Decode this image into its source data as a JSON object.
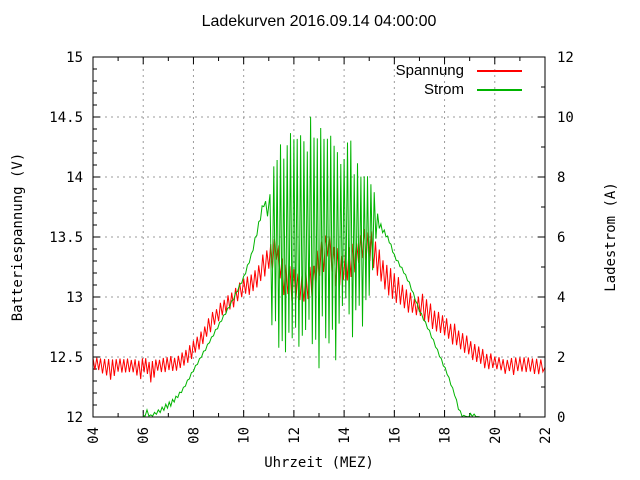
{
  "title": "Ladekurven 2016.09.14 04:00:00",
  "legend": {
    "position": "top-right-inside",
    "items": [
      {
        "label": "Spannung",
        "color": "#ff0000"
      },
      {
        "label": "Strom",
        "color": "#00b400"
      }
    ]
  },
  "style": {
    "background": "#ffffff",
    "border_color": "#000000",
    "grid_color": "#9b9b9b",
    "text_color": "#000000"
  },
  "chart_data": {
    "type": "line",
    "title": "Ladekurven 2016.09.14 04:00:00",
    "xlabel": "Uhrzeit (MEZ)",
    "ylabel_left": "Batteriespannung (V)",
    "ylabel_right": "Ladestrom (A)",
    "grid": true,
    "point_format": "[hour, min_value, max_value] noisy-trace envelope",
    "axes": {
      "x": {
        "label": "Uhrzeit (MEZ)",
        "min": 4,
        "max": 22,
        "minor_step": 1,
        "ticks": [
          {
            "label": "04",
            "value": 4
          },
          {
            "label": "06",
            "value": 6
          },
          {
            "label": "08",
            "value": 8
          },
          {
            "label": "10",
            "value": 10
          },
          {
            "label": "12",
            "value": 12
          },
          {
            "label": "14",
            "value": 14
          },
          {
            "label": "16",
            "value": 16
          },
          {
            "label": "18",
            "value": 18
          },
          {
            "label": "20",
            "value": 20
          },
          {
            "label": "22",
            "value": 22
          }
        ]
      },
      "y_left": {
        "label": "Batteriespannung (V)",
        "min": 12,
        "max": 15,
        "minor_step": 0.1,
        "ticks": [
          {
            "label": "12",
            "value": 12
          },
          {
            "label": "12.5",
            "value": 12.5
          },
          {
            "label": "13",
            "value": 13
          },
          {
            "label": "13.5",
            "value": 13.5
          },
          {
            "label": "14",
            "value": 14
          },
          {
            "label": "14.5",
            "value": 14.5
          },
          {
            "label": "15",
            "value": 15
          }
        ]
      },
      "y_right": {
        "label": "Ladestrom (A)",
        "min": 0,
        "max": 12,
        "minor_step": 1,
        "ticks": [
          {
            "label": "0",
            "value": 0
          },
          {
            "label": "2",
            "value": 2
          },
          {
            "label": "4",
            "value": 4
          },
          {
            "label": "6",
            "value": 6
          },
          {
            "label": "8",
            "value": 8
          },
          {
            "label": "10",
            "value": 10
          },
          {
            "label": "12",
            "value": 12
          }
        ]
      }
    },
    "series": [
      {
        "name": "Spannung",
        "axis": "left",
        "color": "#ff0000",
        "unit": "V",
        "points": [
          [
            4.0,
            12.36,
            12.5
          ],
          [
            4.3,
            12.37,
            12.5
          ],
          [
            4.7,
            12.3,
            12.5
          ],
          [
            5.0,
            12.37,
            12.5
          ],
          [
            5.3,
            12.36,
            12.49
          ],
          [
            5.6,
            12.37,
            12.5
          ],
          [
            5.9,
            12.3,
            12.49
          ],
          [
            6.1,
            12.37,
            12.5
          ],
          [
            6.3,
            12.26,
            12.48
          ],
          [
            6.5,
            12.36,
            12.5
          ],
          [
            6.8,
            12.37,
            12.5
          ],
          [
            7.1,
            12.37,
            12.51
          ],
          [
            7.4,
            12.39,
            12.52
          ],
          [
            7.7,
            12.43,
            12.56
          ],
          [
            8.0,
            12.5,
            12.65
          ],
          [
            8.3,
            12.58,
            12.73
          ],
          [
            8.6,
            12.68,
            12.83
          ],
          [
            9.0,
            12.78,
            12.95
          ],
          [
            9.3,
            12.85,
            13.0
          ],
          [
            9.6,
            12.9,
            13.06
          ],
          [
            10.0,
            13.0,
            13.16
          ],
          [
            10.3,
            13.02,
            13.2
          ],
          [
            10.6,
            13.05,
            13.3
          ],
          [
            11.0,
            13.2,
            13.44
          ],
          [
            11.3,
            13.26,
            13.5
          ],
          [
            11.6,
            13.0,
            13.3
          ],
          [
            12.0,
            12.95,
            13.25
          ],
          [
            12.4,
            12.9,
            13.2
          ],
          [
            12.8,
            13.0,
            13.3
          ],
          [
            13.1,
            13.15,
            13.5
          ],
          [
            13.35,
            13.3,
            13.58
          ],
          [
            13.6,
            13.1,
            13.45
          ],
          [
            13.9,
            13.05,
            13.4
          ],
          [
            14.2,
            13.15,
            13.45
          ],
          [
            14.5,
            13.2,
            13.5
          ],
          [
            14.8,
            13.3,
            13.62
          ],
          [
            15.1,
            13.2,
            13.55
          ],
          [
            15.4,
            13.1,
            13.4
          ],
          [
            15.7,
            13.0,
            13.3
          ],
          [
            16.0,
            12.95,
            13.22
          ],
          [
            16.4,
            12.88,
            13.1
          ],
          [
            16.8,
            12.82,
            13.0
          ],
          [
            17.2,
            12.78,
            13.04
          ],
          [
            17.6,
            12.72,
            12.92
          ],
          [
            18.0,
            12.65,
            12.85
          ],
          [
            18.4,
            12.58,
            12.78
          ],
          [
            18.8,
            12.52,
            12.7
          ],
          [
            19.2,
            12.46,
            12.62
          ],
          [
            19.6,
            12.4,
            12.56
          ],
          [
            20.0,
            12.37,
            12.52
          ],
          [
            20.5,
            12.35,
            12.5
          ],
          [
            21.0,
            12.35,
            12.5
          ],
          [
            21.5,
            12.35,
            12.5
          ],
          [
            22.0,
            12.35,
            12.48
          ]
        ]
      },
      {
        "name": "Strom",
        "axis": "right",
        "color": "#00b400",
        "unit": "A",
        "points": [
          [
            6.0,
            0.0,
            0.05
          ],
          [
            6.15,
            0.0,
            0.25
          ],
          [
            6.3,
            0.0,
            0.08
          ],
          [
            6.6,
            0.1,
            0.25
          ],
          [
            6.9,
            0.25,
            0.45
          ],
          [
            7.1,
            0.35,
            0.55
          ],
          [
            7.3,
            0.55,
            0.7
          ],
          [
            7.6,
            0.9,
            1.0
          ],
          [
            8.0,
            1.5,
            1.6
          ],
          [
            8.4,
            2.1,
            2.2
          ],
          [
            8.8,
            2.7,
            2.8
          ],
          [
            9.2,
            3.3,
            3.4
          ],
          [
            9.6,
            3.9,
            4.0
          ],
          [
            10.0,
            4.6,
            4.7
          ],
          [
            10.3,
            5.3,
            5.45
          ],
          [
            10.6,
            6.3,
            6.55
          ],
          [
            10.8,
            7.0,
            7.3
          ],
          [
            10.95,
            6.6,
            7.1
          ],
          [
            11.05,
            3.0,
            8.3
          ],
          [
            11.2,
            1.8,
            8.8
          ],
          [
            11.4,
            1.6,
            9.2
          ],
          [
            11.6,
            1.4,
            9.0
          ],
          [
            11.8,
            1.6,
            9.4
          ],
          [
            12.0,
            1.8,
            9.6
          ],
          [
            12.2,
            2.2,
            9.8
          ],
          [
            12.4,
            1.6,
            10.3
          ],
          [
            12.6,
            1.4,
            10.0
          ],
          [
            12.8,
            1.2,
            10.2
          ],
          [
            13.0,
            1.4,
            9.6
          ],
          [
            13.2,
            1.8,
            9.9
          ],
          [
            13.4,
            2.0,
            10.2
          ],
          [
            13.6,
            1.6,
            9.4
          ],
          [
            13.8,
            2.2,
            9.2
          ],
          [
            14.0,
            2.6,
            9.4
          ],
          [
            14.2,
            2.4,
            9.6
          ],
          [
            14.4,
            2.2,
            9.0
          ],
          [
            14.6,
            2.6,
            8.6
          ],
          [
            14.8,
            3.0,
            8.8
          ],
          [
            15.0,
            3.4,
            8.4
          ],
          [
            15.2,
            5.6,
            7.6
          ],
          [
            15.4,
            6.2,
            6.6
          ],
          [
            15.6,
            6.1,
            6.25
          ],
          [
            15.8,
            5.8,
            5.95
          ],
          [
            16.0,
            5.3,
            5.45
          ],
          [
            16.3,
            4.9,
            5.0
          ],
          [
            16.6,
            4.4,
            4.5
          ],
          [
            17.0,
            3.5,
            3.6
          ],
          [
            17.4,
            2.8,
            2.9
          ],
          [
            17.8,
            2.0,
            2.1
          ],
          [
            18.1,
            1.4,
            1.5
          ],
          [
            18.4,
            0.7,
            0.8
          ],
          [
            18.55,
            0.25,
            0.35
          ],
          [
            18.7,
            0.0,
            0.08
          ],
          [
            18.9,
            0.0,
            0.03
          ],
          [
            19.1,
            0.0,
            0.18
          ],
          [
            19.25,
            0.0,
            0.03
          ],
          [
            19.4,
            0.0,
            0.02
          ]
        ]
      }
    ]
  }
}
